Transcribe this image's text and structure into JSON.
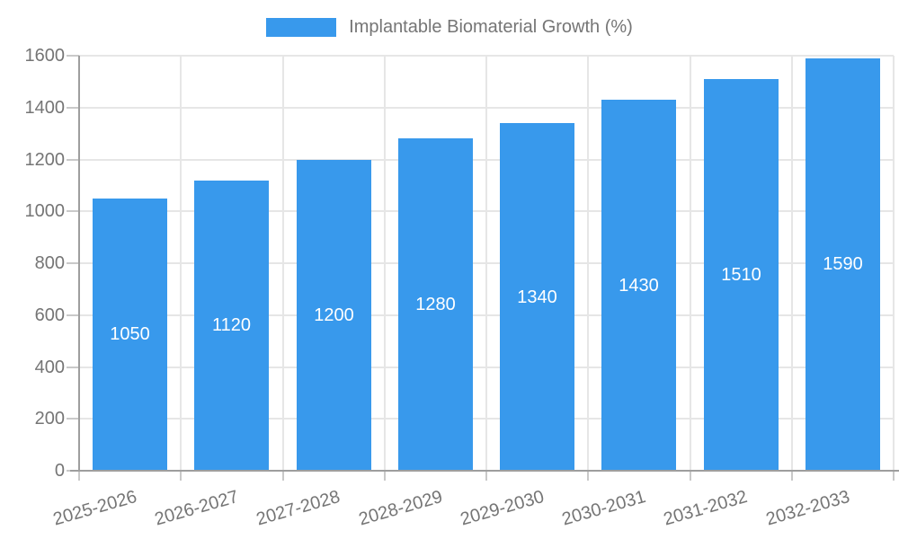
{
  "chart_data": {
    "type": "bar",
    "title": "",
    "legend": "Implantable Biomaterial Growth (%)",
    "legend_position": "top-center",
    "categories": [
      "2025-2026",
      "2026-2027",
      "2027-2028",
      "2028-2029",
      "2029-2030",
      "2030-2031",
      "2031-2032",
      "2032-2033"
    ],
    "values": [
      1050,
      1120,
      1200,
      1280,
      1340,
      1430,
      1510,
      1590
    ],
    "xlabel": "",
    "ylabel": "",
    "ylim": [
      0,
      1600
    ],
    "ytick_step": 200,
    "yticks": [
      0,
      200,
      400,
      600,
      800,
      1000,
      1200,
      1400,
      1600
    ],
    "grid": true,
    "value_labels": "inside-center",
    "colors": {
      "bar": "#3899EC",
      "grid": "#E6E6E6",
      "axis": "#9E9E9E",
      "tick": "#C9C9C9",
      "text": "#757575",
      "value_label_text": "#FFFFFF",
      "background": "#FFFFFF"
    }
  }
}
